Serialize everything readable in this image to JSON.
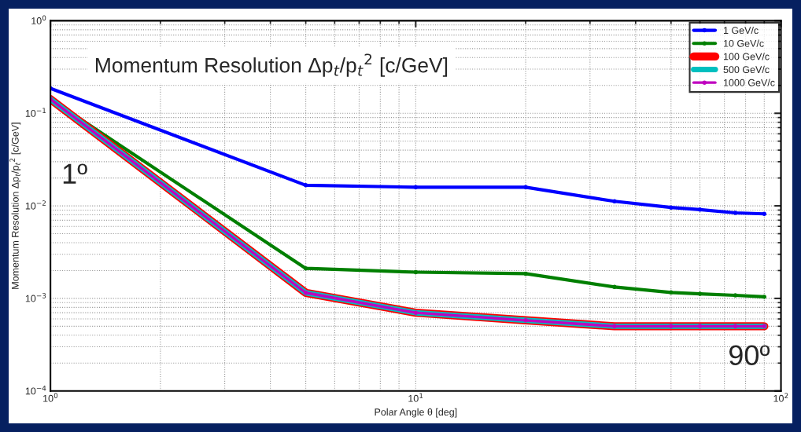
{
  "chart_data": {
    "type": "line",
    "title": "Momentum Resolution Δp$_{t}$/p$_{t}$$^{2}$ [c/GeV]",
    "xlabel": "Polar Angle θ [deg]",
    "ylabel": "Momentum Resolution Δp$_{t}$/p$_{t}$$^{2}$ [c/GeV]",
    "x": [
      1,
      5,
      10,
      20,
      35,
      50,
      60,
      75,
      90
    ],
    "series": [
      {
        "name": "1 GeV/c",
        "color": "#0000ff",
        "values": [
          0.186,
          0.0167,
          0.0159,
          0.0159,
          0.0112,
          0.0096,
          0.0091,
          0.0084,
          0.0082
        ]
      },
      {
        "name": "10 GeV/c",
        "color": "#007f00",
        "values": [
          0.142,
          0.00211,
          0.00192,
          0.00185,
          0.00133,
          0.00116,
          0.00112,
          0.00108,
          0.00104
        ]
      },
      {
        "name": "100 GeV/c",
        "color": "#ff0000",
        "values": [
          0.142,
          0.00115,
          0.0007,
          0.00058,
          0.0005,
          0.0005,
          0.0005,
          0.0005,
          0.0005
        ]
      },
      {
        "name": "500 GeV/c",
        "color": "#00bfbf",
        "values": [
          0.142,
          0.00115,
          0.0007,
          0.00058,
          0.0005,
          0.0005,
          0.0005,
          0.0005,
          0.0005
        ]
      },
      {
        "name": "1000 GeV/c",
        "color": "#bf00bf",
        "values": [
          0.142,
          0.00115,
          0.0007,
          0.00058,
          0.0005,
          0.0005,
          0.0005,
          0.0005,
          0.0005
        ]
      }
    ],
    "log": "xy",
    "xlim": [
      1,
      100
    ],
    "ylim": [
      0.0001,
      1
    ],
    "xticks": [
      {
        "value": 1,
        "label": "10$^{0}$"
      },
      {
        "value": 10,
        "label": "10$^{1}$"
      },
      {
        "value": 100,
        "label": "10$^{2}$"
      }
    ],
    "yticks": [
      {
        "value": 0.0001,
        "label": "10$^{−4}$"
      },
      {
        "value": 0.001,
        "label": "10$^{−3}$"
      },
      {
        "value": 0.01,
        "label": "10$^{−2}$"
      },
      {
        "value": 0.1,
        "label": "10$^{−1}$"
      },
      {
        "value": 1,
        "label": "10$^{0}$"
      }
    ],
    "grid": true,
    "legend": "top right",
    "marker": "circle",
    "line_style": "solid",
    "annotations": [
      "1º",
      "90º"
    ]
  }
}
